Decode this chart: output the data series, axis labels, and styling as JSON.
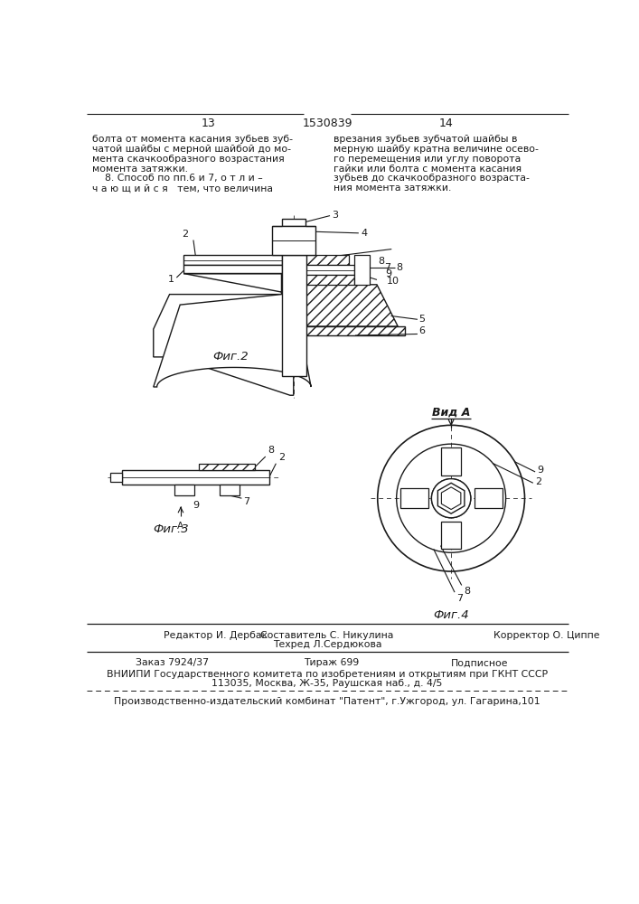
{
  "page_width": 7.07,
  "page_height": 10.0,
  "bg_color": "#ffffff",
  "text_color": "#1a1a1a",
  "line_color": "#1a1a1a",
  "header_page_left": "13",
  "header_center": "1530839",
  "header_page_right": "14",
  "text_left_col": [
    "болта от момента касания зубьев зуб-",
    "чатой шайбы с мерной шайбой до мо-",
    "мента скачкообразного возрастания",
    "момента затяжки.",
    "    8. Способ по пп.6 и 7, о т л и –",
    "ч а ю щ и й с я   тем, что величина"
  ],
  "text_right_col": [
    "врезания зубьев зубчатой шайбы в",
    "мерную шайбу кратна величине осево-",
    "го перемещения или углу поворота",
    "гайки или болта с момента касания",
    "зубьев до скачкообразного возраста-",
    "ния момента затяжки."
  ],
  "fig2_label": "Фиг.2",
  "fig3_label": "Фиг.3",
  "fig4_label": "Фиг.4",
  "vid_a_label": "Вид A",
  "footer_editor": "Редактор И. Дербак",
  "footer_composer": "Составитель С. Никулина",
  "footer_corrector": "Корректор О. Циппе",
  "footer_tekhred": "Техред Л.Сердюкова",
  "footer_order": "Заказ 7924/37",
  "footer_tirazh": "Тираж 699",
  "footer_podpisnoe": "Подписное",
  "footer_vniip": "ВНИИПИ Государственного комитета по изобретениям и открытиям при ГКНТ СССР",
  "footer_addr": "113035, Москва, Ж-35, Раушская наб., д. 4/5",
  "footer_patent": "Производственно-издательский комбинат \"Патент\", г.Ужгород, ул. Гагарина,101"
}
